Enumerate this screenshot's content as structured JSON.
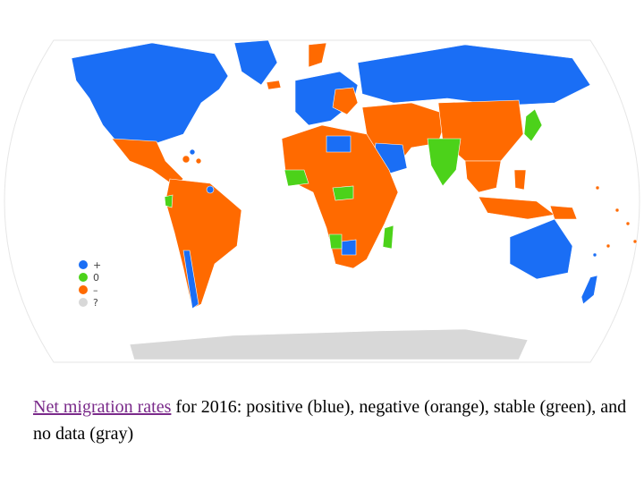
{
  "map": {
    "colors": {
      "positive": "#1a6ef5",
      "stable": "#4cd21a",
      "negative": "#ff6a00",
      "no_data": "#d8d8d8",
      "ocean": "#ffffff",
      "border": "#e8e8e8"
    }
  },
  "legend": {
    "items": [
      {
        "symbol": "+",
        "color": "#1a6ef5"
      },
      {
        "symbol": "0",
        "color": "#4cd21a"
      },
      {
        "symbol": "–",
        "color": "#ff6a00"
      },
      {
        "symbol": "?",
        "color": "#d8d8d8"
      }
    ]
  },
  "caption": {
    "link_text": "Net migration rates",
    "rest_text": " for 2016: positive (blue), negative (orange), stable (green), and no data (gray)"
  }
}
